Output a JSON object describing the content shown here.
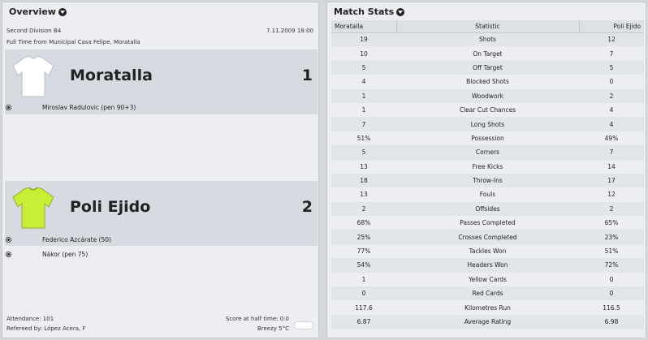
{
  "overview": {
    "title": "Overview",
    "competition": "Second Division B4",
    "datetime": "7.11.2009 18:00",
    "venue_line": "Full Time from Municipal Casa Felipe, Moratalla",
    "home": {
      "name": "Moratalla",
      "score": "1",
      "shirt_color": "#ffffff",
      "scorers": [
        "Miroslav Radulovic (pen 90+3)"
      ]
    },
    "away": {
      "name": "Poli Ejido",
      "score": "2",
      "shirt_color": "#c6ef35",
      "scorers": [
        "Federico Azcárate (50)",
        "Nákor (pen 75)"
      ]
    },
    "attendance": "Attendance: 101",
    "referee": "Refereed by: López Acera, F",
    "half_time": "Score at half time: 0:0",
    "weather": "Breezy 5°C",
    "weather_icon": "cloud-icon"
  },
  "stats": {
    "title": "Match Stats",
    "headers": [
      "Moratalla",
      "Statistic",
      "Poli Ejido"
    ],
    "rows": [
      [
        "19",
        "Shots",
        "12"
      ],
      [
        "10",
        "On Target",
        "7"
      ],
      [
        "5",
        "Off Target",
        "5"
      ],
      [
        "4",
        "Blocked Shots",
        "0"
      ],
      [
        "1",
        "Woodwork",
        "2"
      ],
      [
        "1",
        "Clear Cut Chances",
        "4"
      ],
      [
        "7",
        "Long Shots",
        "4"
      ],
      [
        "51%",
        "Possession",
        "49%"
      ],
      [
        "5",
        "Corners",
        "7"
      ],
      [
        "13",
        "Free Kicks",
        "14"
      ],
      [
        "18",
        "Throw-Ins",
        "17"
      ],
      [
        "13",
        "Fouls",
        "12"
      ],
      [
        "2",
        "Offsides",
        "2"
      ],
      [
        "68%",
        "Passes Completed",
        "65%"
      ],
      [
        "25%",
        "Crosses Completed",
        "23%"
      ],
      [
        "77%",
        "Tackles Won",
        "51%"
      ],
      [
        "54%",
        "Headers Won",
        "72%"
      ],
      [
        "1",
        "Yellow Cards",
        "0"
      ],
      [
        "0",
        "Red Cards",
        "0"
      ],
      [
        "117.6",
        "Kilometres Run",
        "116.5"
      ],
      [
        "6.87",
        "Average Rating",
        "6.98"
      ]
    ]
  }
}
